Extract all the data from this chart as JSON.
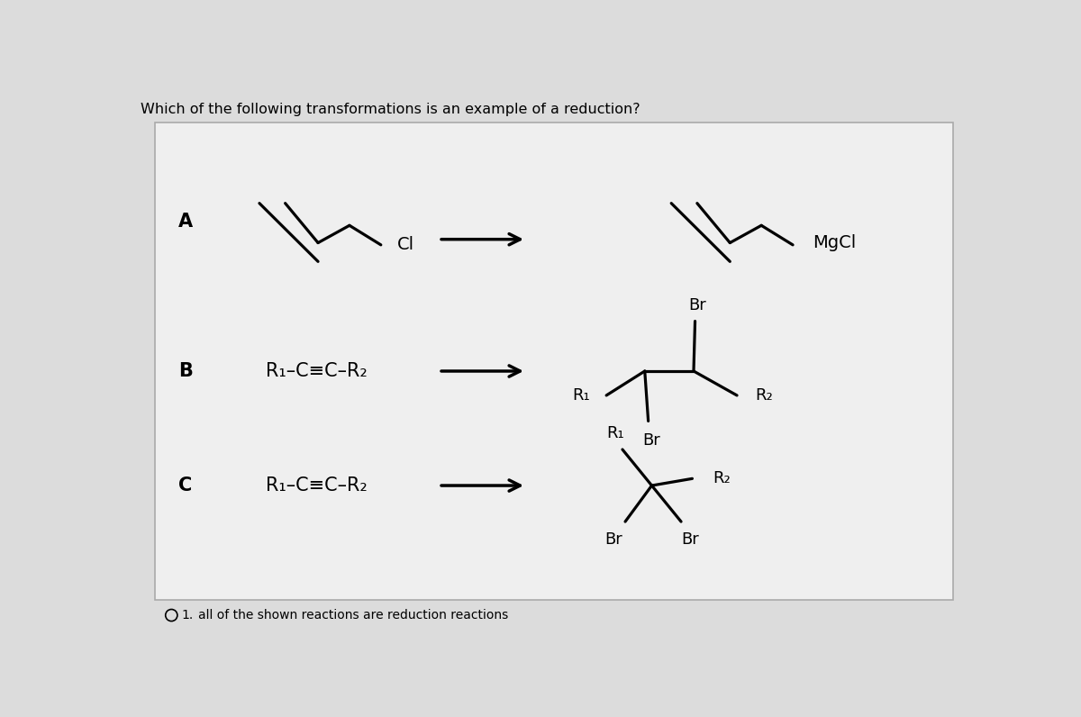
{
  "title": "Which of the following transformations is an example of a reduction?",
  "bg_color": "#dcdcdc",
  "box_bg": "#efefef",
  "box_edge": "#aaaaaa",
  "text_color": "#000000",
  "option1_text": "all of the shown reactions are reduction reactions",
  "option1_label": "1."
}
